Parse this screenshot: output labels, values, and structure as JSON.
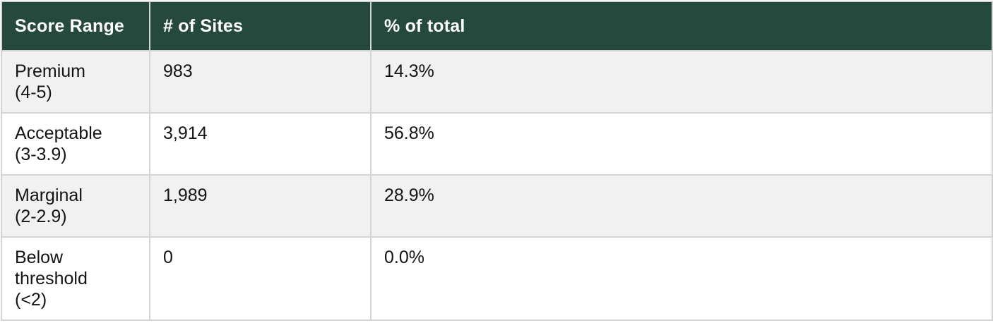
{
  "chart_data": {
    "type": "table",
    "title": "",
    "columns": [
      "Score Range",
      "# of Sites",
      "% of total"
    ],
    "rows": [
      [
        "Premium (4-5)",
        983,
        "14.3%"
      ],
      [
        "Acceptable (3-3.9)",
        3914,
        "56.8%"
      ],
      [
        "Marginal (2-2.9)",
        1989,
        "28.9%"
      ],
      [
        "Below threshold (<2)",
        0,
        "0.0%"
      ]
    ]
  },
  "table": {
    "columns": [
      {
        "label": "Score Range"
      },
      {
        "label": "# of Sites"
      },
      {
        "label": "% of total"
      }
    ],
    "rows": [
      {
        "score_range": "Premium\n(4-5)",
        "num_sites": "983",
        "pct_of_total": "14.3%"
      },
      {
        "score_range": "Acceptable\n(3-3.9)",
        "num_sites": "3,914",
        "pct_of_total": "56.8%"
      },
      {
        "score_range": "Marginal\n(2-2.9)",
        "num_sites": "1,989",
        "pct_of_total": "28.9%"
      },
      {
        "score_range": "Below\nthreshold\n(<2)",
        "num_sites": "0",
        "pct_of_total": "0.0%"
      }
    ],
    "colors": {
      "header_background": "#25493D",
      "header_text": "#FFFFFF",
      "row_striped_background": "#F1F1F2",
      "row_background": "#FFFFFF",
      "border": "#D4D4D5",
      "body_text": "#141414"
    }
  }
}
